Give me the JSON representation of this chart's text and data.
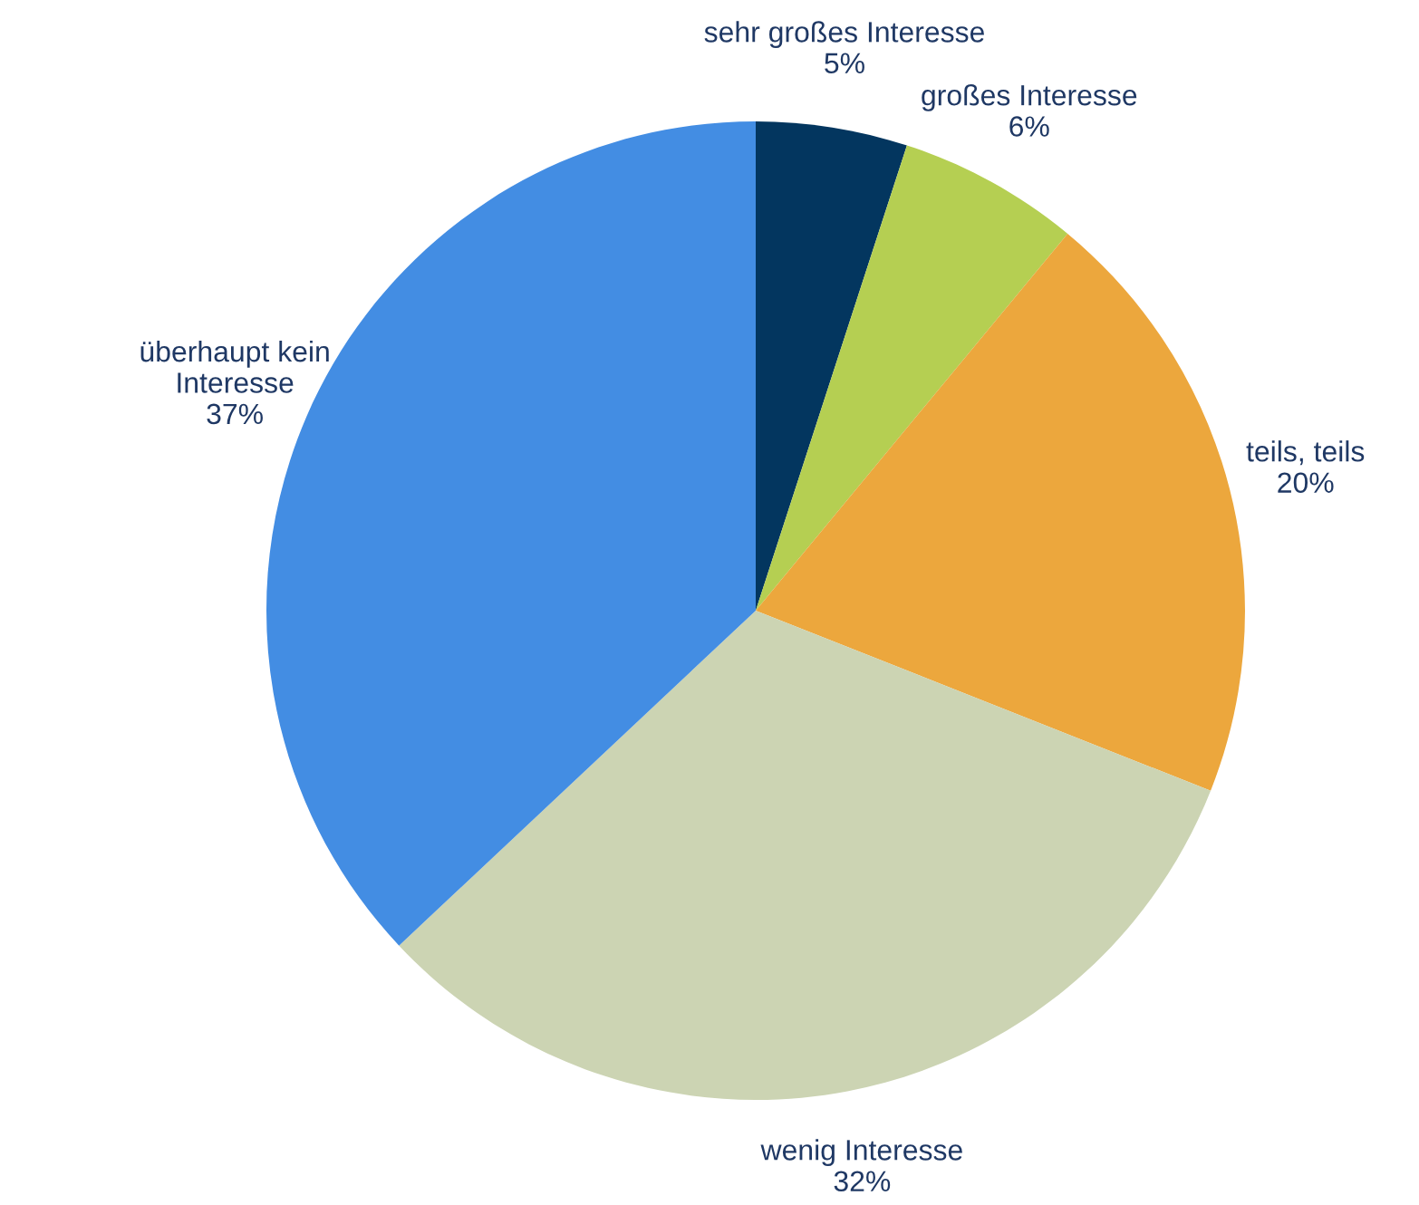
{
  "chart_data": {
    "type": "pie",
    "categories": [
      "sehr großes Interesse",
      "großes Interesse",
      "teils, teils",
      "wenig Interesse",
      "überhaupt kein\nInteresse"
    ],
    "values": [
      5,
      6,
      20,
      32,
      37
    ],
    "colors": [
      "#03365f",
      "#b5cf52",
      "#eca73d",
      "#ccd4b3",
      "#438de3"
    ],
    "value_labels": [
      "5%",
      "6%",
      "20%",
      "32%",
      "37%"
    ],
    "legend": false
  }
}
